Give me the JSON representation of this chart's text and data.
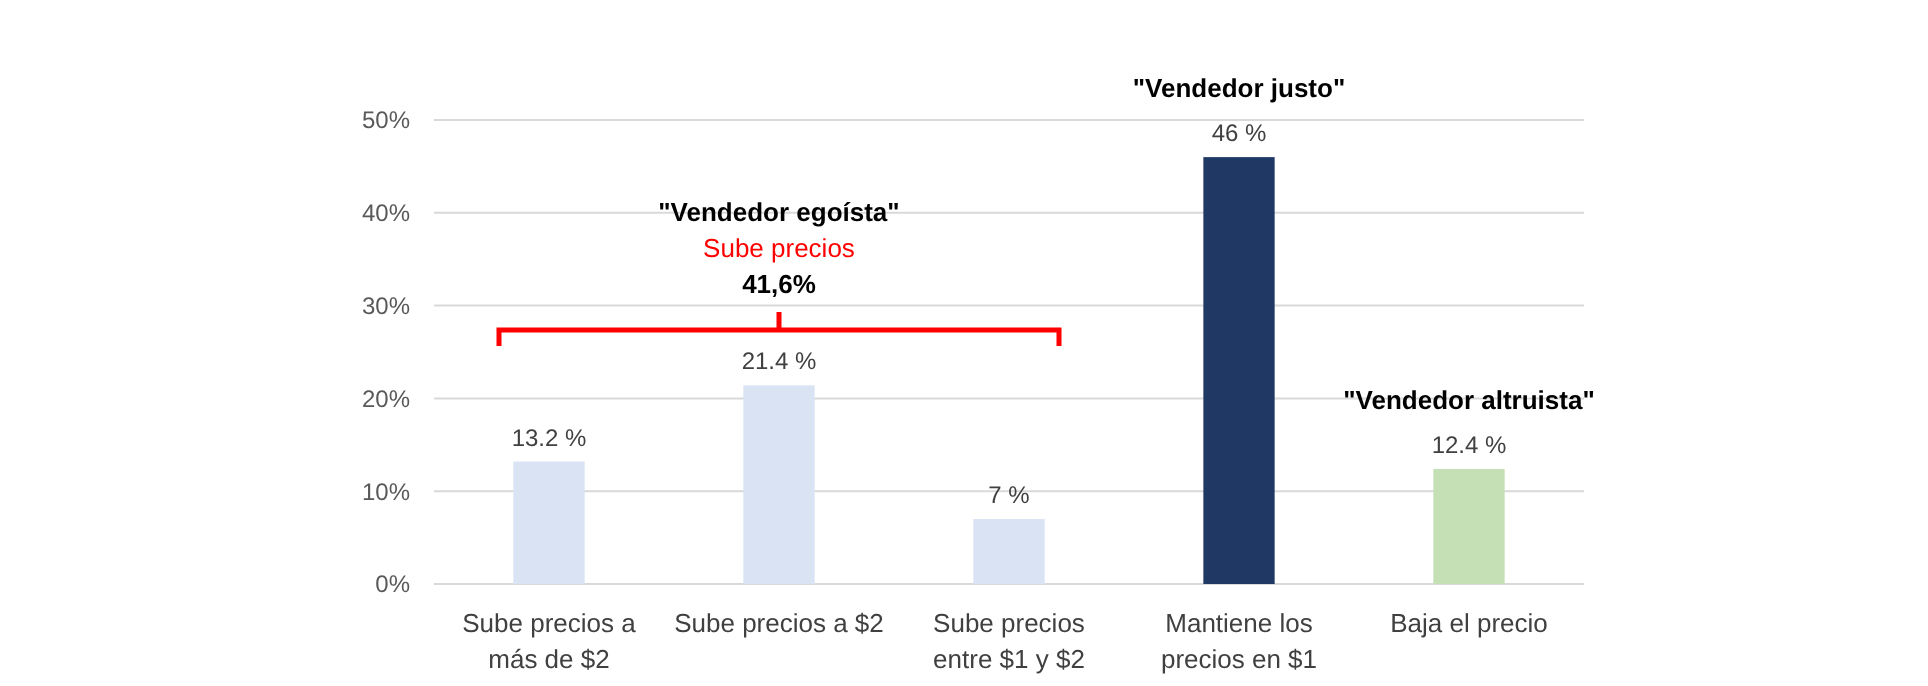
{
  "chart_data": {
    "type": "bar",
    "categories": [
      "Sube precios a más de $2",
      "Sube precios a $2",
      "Sube precios entre $1 y $2",
      "Mantiene los precios en $1",
      "Baja el precio"
    ],
    "values": [
      13.2,
      21.4,
      7,
      46,
      12.4
    ],
    "colors": [
      "#dae3f3",
      "#dae3f3",
      "#dae3f3",
      "#203864",
      "#c5e0b4"
    ],
    "value_labels": [
      "13.2 %",
      "21.4 %",
      "7 %",
      "46 %",
      "12.4 %"
    ],
    "ylim": [
      0,
      50
    ],
    "yticks": [
      {
        "value": 0,
        "label": "0%"
      },
      {
        "value": 10,
        "label": "10%"
      },
      {
        "value": 20,
        "label": "20%"
      },
      {
        "value": 30,
        "label": "30%"
      },
      {
        "value": 40,
        "label": "40%"
      },
      {
        "value": 50,
        "label": "50%"
      }
    ],
    "grid": "y",
    "annotations": [
      "\"Vendedor egoísta\"",
      "Sube precios",
      "41,6%",
      {
        "text": "\"Vendedor justo\"",
        "x": "Mantiene los precios en $1",
        "y": 46
      },
      {
        "text": "\"Vendedor altruista\"",
        "x": "Baja el precio",
        "y": 12.4
      }
    ]
  }
}
